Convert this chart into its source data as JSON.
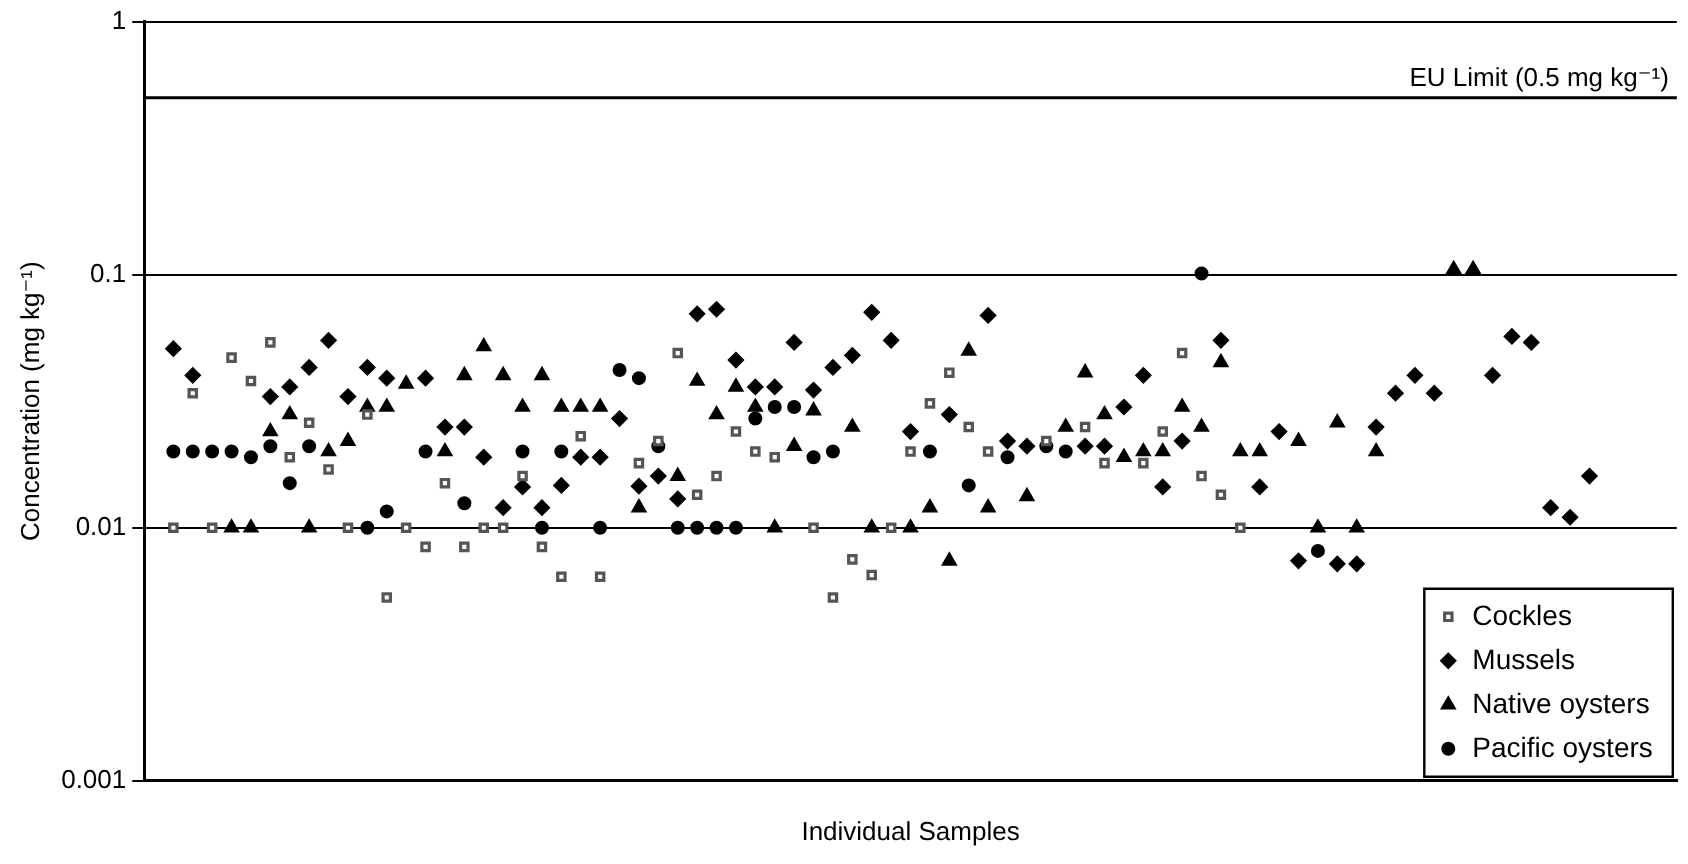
{
  "chart_data": {
    "type": "scatter",
    "xlabel": "Individual Samples",
    "ylabel": "Concentration (mg kg⁻¹)",
    "categories": [
      null,
      null,
      null,
      null,
      null,
      null,
      null,
      null,
      null,
      null,
      null,
      null,
      null,
      null,
      null,
      null,
      null,
      null,
      null,
      null,
      null,
      null,
      null,
      null,
      null,
      null,
      null,
      null,
      null,
      null,
      null,
      null,
      null,
      null,
      null,
      null,
      null,
      null,
      null,
      null,
      null,
      null,
      null,
      null,
      null,
      null,
      null,
      null,
      null,
      null,
      null,
      null,
      null,
      null,
      null,
      null,
      null,
      null,
      null,
      null,
      null,
      null,
      null,
      null,
      null,
      null,
      null,
      null,
      null,
      null,
      null,
      null,
      null,
      null,
      null,
      null,
      null,
      null,
      null
    ],
    "series": [
      {
        "name": "Cockles",
        "color": "#555555",
        "marker": "square",
        "values": [
          null,
          0.01,
          0.034,
          0.01,
          0.047,
          0.038,
          0.054,
          0.019,
          0.026,
          0.017,
          0.01,
          0.028,
          0.0053,
          0.01,
          0.0084,
          0.015,
          0.0084,
          0.01,
          0.01,
          0.016,
          0.0084,
          0.0064,
          0.023,
          0.0064,
          null,
          0.018,
          0.022,
          0.049,
          0.0135,
          0.016,
          0.024,
          0.02,
          0.019,
          null,
          0.01,
          0.0053,
          0.0075,
          0.0065,
          0.01,
          0.02,
          0.031,
          0.041,
          0.025,
          0.02,
          null,
          null,
          0.022,
          null,
          0.025,
          0.018,
          null,
          0.018,
          0.024,
          0.049,
          0.016,
          0.0135,
          0.01,
          null,
          null,
          null,
          null,
          null,
          null,
          null,
          null,
          null,
          null,
          null,
          null,
          null,
          null,
          null,
          null,
          null,
          null,
          null,
          null,
          null,
          null
        ]
      },
      {
        "name": "Mussels",
        "color": "#000000",
        "marker": "diamond",
        "values": [
          null,
          0.051,
          0.04,
          null,
          null,
          null,
          0.033,
          0.036,
          0.043,
          0.055,
          0.033,
          0.043,
          0.039,
          null,
          0.039,
          0.025,
          0.025,
          0.019,
          0.012,
          0.0145,
          0.012,
          0.0147,
          0.019,
          0.019,
          0.027,
          0.0146,
          0.016,
          0.013,
          0.07,
          0.073,
          0.046,
          0.036,
          0.036,
          0.054,
          0.035,
          0.043,
          0.048,
          0.071,
          0.055,
          0.024,
          null,
          0.028,
          null,
          0.069,
          0.022,
          0.021,
          null,
          null,
          0.021,
          0.021,
          0.03,
          0.04,
          0.0145,
          0.022,
          null,
          0.055,
          null,
          0.0145,
          0.024,
          0.0074,
          null,
          0.0072,
          0.0072,
          0.025,
          0.034,
          0.04,
          0.034,
          null,
          null,
          0.04,
          0.057,
          0.054,
          0.012,
          0.011,
          0.016,
          null,
          null,
          null,
          null
        ]
      },
      {
        "name": "Native oysters",
        "color": "#000000",
        "marker": "triangle",
        "values": [
          null,
          null,
          null,
          null,
          0.01,
          0.01,
          0.024,
          0.028,
          0.01,
          0.02,
          0.022,
          0.03,
          0.03,
          0.037,
          null,
          0.02,
          0.04,
          0.052,
          0.04,
          0.03,
          0.04,
          0.03,
          0.03,
          0.03,
          null,
          0.012,
          null,
          0.016,
          0.038,
          0.028,
          0.036,
          0.03,
          0.01,
          0.021,
          0.029,
          null,
          0.025,
          0.01,
          null,
          0.01,
          0.012,
          0.0074,
          0.05,
          0.012,
          null,
          0.0133,
          null,
          0.025,
          0.041,
          0.028,
          0.019,
          0.02,
          0.02,
          0.03,
          0.025,
          0.045,
          0.02,
          0.02,
          null,
          0.022,
          0.01,
          0.026,
          0.01,
          0.02,
          null,
          null,
          null,
          0.105,
          0.105,
          null,
          null,
          null,
          null,
          null,
          null,
          null,
          null,
          null,
          null
        ]
      },
      {
        "name": "Pacific oysters",
        "color": "#000000",
        "marker": "circle",
        "values": [
          null,
          0.02,
          0.02,
          0.02,
          0.02,
          0.019,
          0.021,
          0.015,
          0.021,
          null,
          null,
          0.01,
          0.0116,
          null,
          0.02,
          null,
          0.0125,
          null,
          null,
          0.02,
          0.01,
          0.02,
          null,
          0.01,
          0.042,
          0.039,
          0.021,
          0.01,
          0.01,
          0.01,
          0.01,
          0.027,
          0.03,
          0.03,
          0.019,
          0.02,
          null,
          null,
          null,
          null,
          0.02,
          null,
          0.0147,
          null,
          0.019,
          null,
          0.021,
          0.02,
          null,
          null,
          null,
          null,
          null,
          null,
          0.101,
          null,
          null,
          null,
          null,
          null,
          0.0081,
          null,
          null,
          null,
          null,
          null,
          null,
          null,
          null,
          null,
          null,
          null,
          null,
          null,
          null,
          null,
          null,
          null,
          null
        ]
      }
    ],
    "log": "y",
    "ylim": [
      0.001,
      1
    ],
    "yticks": [
      0.001,
      0.01,
      0.1,
      1
    ],
    "grid": "y",
    "legend": "bottom right",
    "tick_labels": "y",
    "ref_lines": [
      {
        "axis": "y",
        "value": 0.5,
        "label": "EU Limit (0.5 mg kg⁻¹)",
        "color": "#000000"
      }
    ]
  }
}
